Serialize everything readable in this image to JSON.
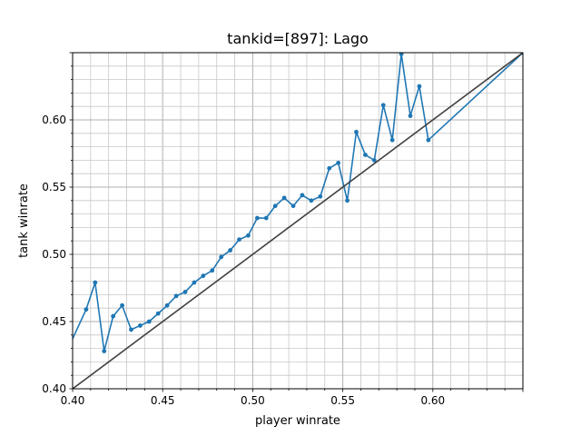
{
  "chart_data": {
    "type": "line",
    "title": "tankid=[897]: Lago",
    "xlabel": "player winrate",
    "ylabel": "tank winrate",
    "xlim": [
      0.4,
      0.65
    ],
    "ylim": [
      0.4,
      0.65
    ],
    "xticks": [
      "0.40",
      "0.45",
      "0.50",
      "0.55",
      "0.60"
    ],
    "yticks": [
      "0.40",
      "0.45",
      "0.50",
      "0.55",
      "0.60"
    ],
    "grid": true,
    "series": [
      {
        "color": "#1f77b4",
        "marker": "circle",
        "x": [
          0.3975,
          0.4075,
          0.4125,
          0.4175,
          0.4225,
          0.4275,
          0.4325,
          0.4375,
          0.4425,
          0.4475,
          0.4525,
          0.4575,
          0.4625,
          0.4675,
          0.4725,
          0.4775,
          0.4825,
          0.4875,
          0.4925,
          0.4975,
          0.5025,
          0.5075,
          0.5125,
          0.5175,
          0.5225,
          0.5275,
          0.5325,
          0.5375,
          0.5425,
          0.5475,
          0.5525,
          0.5575,
          0.5625,
          0.5675,
          0.5725,
          0.5775,
          0.5825,
          0.5875,
          0.5925,
          0.5975,
          0.65
        ],
        "y": [
          0.43,
          0.459,
          0.479,
          0.428,
          0.454,
          0.462,
          0.444,
          0.447,
          0.45,
          0.456,
          0.462,
          0.469,
          0.472,
          0.479,
          0.484,
          0.488,
          0.498,
          0.503,
          0.511,
          0.514,
          0.527,
          0.527,
          0.536,
          0.542,
          0.536,
          0.544,
          0.54,
          0.543,
          0.564,
          0.568,
          0.54,
          0.591,
          0.574,
          0.57,
          0.611,
          0.585,
          0.649,
          0.603,
          0.625,
          0.585,
          0.65
        ]
      },
      {
        "color": "#404040",
        "marker": "none",
        "x": [
          0.4,
          0.65
        ],
        "y": [
          0.4,
          0.65
        ]
      }
    ]
  }
}
